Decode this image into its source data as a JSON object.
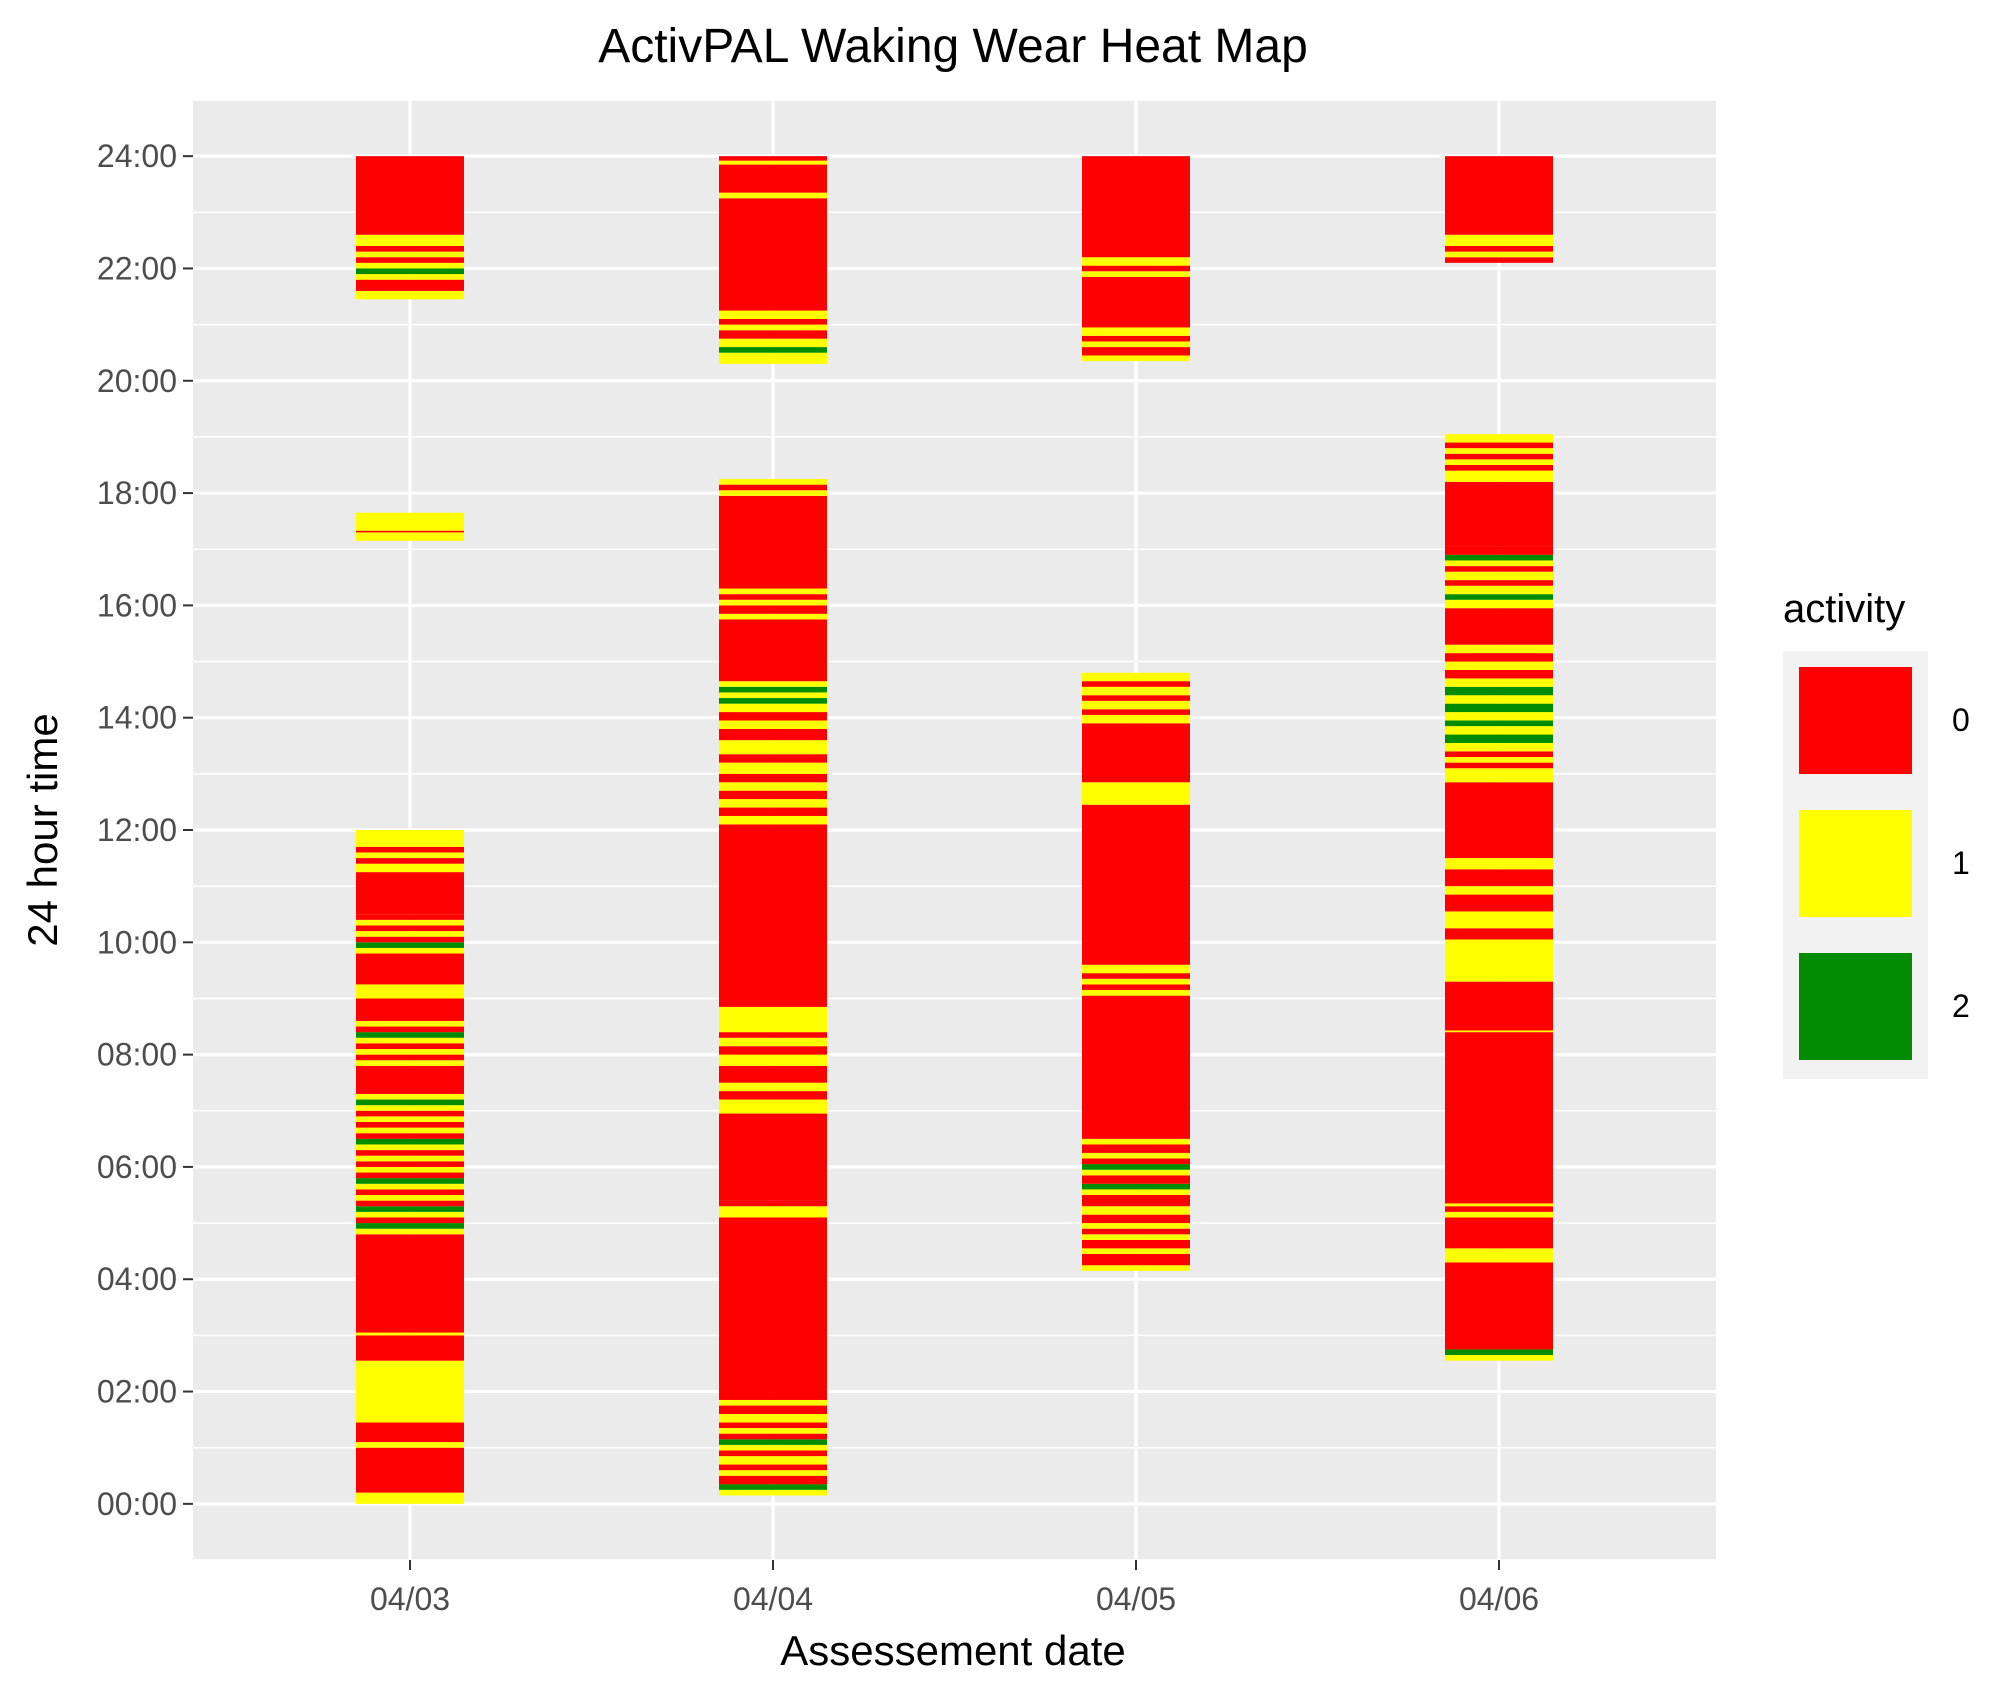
{
  "chart_data": {
    "type": "heatmap",
    "title": "ActivPAL Waking Wear Heat Map",
    "xlabel": "Assessement date",
    "ylabel": "24 hour time",
    "x_categories": [
      "04/03",
      "04/04",
      "04/05",
      "04/06"
    ],
    "y_ticks": [
      "00:00",
      "02:00",
      "04:00",
      "06:00",
      "08:00",
      "10:00",
      "12:00",
      "14:00",
      "16:00",
      "18:00",
      "20:00",
      "22:00",
      "24:00"
    ],
    "ylim_hours": [
      -1,
      25
    ],
    "grid": true,
    "legend": {
      "title": "activity",
      "position": "right",
      "entries": [
        {
          "label": "0",
          "color": "#ff0000"
        },
        {
          "label": "1",
          "color": "#ffff00"
        },
        {
          "label": "2",
          "color": "#008b00"
        }
      ]
    },
    "colors": {
      "0": "#ff0000",
      "1": "#ffff00",
      "2": "#008b00"
    },
    "panel_background": "#ebebeb",
    "series": [
      {
        "date": "04/03",
        "segments": [
          [
            0.0,
            0.2,
            1
          ],
          [
            0.2,
            1.0,
            0
          ],
          [
            1.0,
            1.1,
            1
          ],
          [
            1.1,
            1.45,
            0
          ],
          [
            1.45,
            2.55,
            1
          ],
          [
            2.55,
            3.0,
            0
          ],
          [
            3.0,
            3.05,
            1
          ],
          [
            3.05,
            4.8,
            0
          ],
          [
            4.8,
            4.9,
            1
          ],
          [
            4.9,
            5.0,
            2
          ],
          [
            5.0,
            5.1,
            0
          ],
          [
            5.1,
            5.2,
            1
          ],
          [
            5.2,
            5.3,
            2
          ],
          [
            5.3,
            5.4,
            0
          ],
          [
            5.4,
            5.5,
            1
          ],
          [
            5.5,
            5.6,
            0
          ],
          [
            5.6,
            5.7,
            1
          ],
          [
            5.7,
            5.8,
            2
          ],
          [
            5.8,
            5.9,
            0
          ],
          [
            5.9,
            6.0,
            1
          ],
          [
            6.0,
            6.1,
            0
          ],
          [
            6.1,
            6.2,
            1
          ],
          [
            6.2,
            6.3,
            0
          ],
          [
            6.3,
            6.4,
            1
          ],
          [
            6.4,
            6.5,
            2
          ],
          [
            6.5,
            6.6,
            0
          ],
          [
            6.6,
            6.7,
            1
          ],
          [
            6.7,
            6.8,
            0
          ],
          [
            6.8,
            6.9,
            1
          ],
          [
            6.9,
            7.0,
            0
          ],
          [
            7.0,
            7.1,
            1
          ],
          [
            7.1,
            7.2,
            2
          ],
          [
            7.2,
            7.3,
            1
          ],
          [
            7.3,
            7.8,
            0
          ],
          [
            7.8,
            7.9,
            1
          ],
          [
            7.9,
            8.0,
            0
          ],
          [
            8.0,
            8.1,
            1
          ],
          [
            8.1,
            8.2,
            0
          ],
          [
            8.2,
            8.3,
            1
          ],
          [
            8.3,
            8.4,
            2
          ],
          [
            8.4,
            8.5,
            0
          ],
          [
            8.5,
            8.6,
            1
          ],
          [
            8.6,
            9.0,
            0
          ],
          [
            9.0,
            9.25,
            1
          ],
          [
            9.25,
            9.8,
            0
          ],
          [
            9.8,
            9.9,
            1
          ],
          [
            9.9,
            10.0,
            2
          ],
          [
            10.0,
            10.1,
            0
          ],
          [
            10.1,
            10.2,
            1
          ],
          [
            10.2,
            10.3,
            0
          ],
          [
            10.3,
            10.4,
            1
          ],
          [
            10.4,
            10.5,
            0
          ],
          [
            10.5,
            11.25,
            0
          ],
          [
            11.25,
            11.4,
            1
          ],
          [
            11.4,
            11.5,
            0
          ],
          [
            11.5,
            11.6,
            1
          ],
          [
            11.6,
            11.7,
            0
          ],
          [
            11.7,
            11.8,
            1
          ],
          [
            11.8,
            12.0,
            1
          ],
          [
            17.15,
            17.3,
            1
          ],
          [
            17.3,
            17.33,
            0
          ],
          [
            17.33,
            17.65,
            1
          ],
          [
            21.45,
            21.6,
            1
          ],
          [
            21.6,
            21.8,
            0
          ],
          [
            21.8,
            21.9,
            1
          ],
          [
            21.9,
            22.0,
            2
          ],
          [
            22.0,
            22.1,
            1
          ],
          [
            22.1,
            22.2,
            0
          ],
          [
            22.2,
            22.3,
            1
          ],
          [
            22.3,
            22.4,
            0
          ],
          [
            22.4,
            22.6,
            1
          ],
          [
            22.6,
            24.0,
            0
          ]
        ]
      },
      {
        "date": "04/04",
        "segments": [
          [
            0.15,
            0.25,
            1
          ],
          [
            0.25,
            0.35,
            2
          ],
          [
            0.35,
            0.5,
            0
          ],
          [
            0.5,
            0.6,
            1
          ],
          [
            0.6,
            0.7,
            0
          ],
          [
            0.7,
            0.85,
            1
          ],
          [
            0.85,
            0.95,
            0
          ],
          [
            0.95,
            1.05,
            1
          ],
          [
            1.05,
            1.15,
            2
          ],
          [
            1.15,
            1.25,
            0
          ],
          [
            1.25,
            1.35,
            1
          ],
          [
            1.35,
            1.45,
            0
          ],
          [
            1.45,
            1.6,
            1
          ],
          [
            1.6,
            1.75,
            0
          ],
          [
            1.75,
            1.85,
            1
          ],
          [
            1.85,
            5.1,
            0
          ],
          [
            5.1,
            5.3,
            1
          ],
          [
            5.3,
            5.4,
            0
          ],
          [
            5.4,
            6.95,
            0
          ],
          [
            6.95,
            7.2,
            1
          ],
          [
            7.2,
            7.35,
            0
          ],
          [
            7.35,
            7.5,
            1
          ],
          [
            7.5,
            7.8,
            0
          ],
          [
            7.8,
            8.0,
            1
          ],
          [
            8.0,
            8.15,
            0
          ],
          [
            8.15,
            8.3,
            1
          ],
          [
            8.3,
            8.4,
            0
          ],
          [
            8.4,
            8.85,
            1
          ],
          [
            8.85,
            12.1,
            0
          ],
          [
            12.1,
            12.25,
            1
          ],
          [
            12.25,
            12.4,
            0
          ],
          [
            12.4,
            12.55,
            1
          ],
          [
            12.55,
            12.7,
            0
          ],
          [
            12.7,
            12.85,
            1
          ],
          [
            12.85,
            13.0,
            0
          ],
          [
            13.0,
            13.2,
            1
          ],
          [
            13.2,
            13.35,
            0
          ],
          [
            13.35,
            13.6,
            1
          ],
          [
            13.6,
            13.8,
            0
          ],
          [
            13.8,
            13.95,
            1
          ],
          [
            13.95,
            14.1,
            0
          ],
          [
            14.1,
            14.25,
            1
          ],
          [
            14.25,
            14.35,
            2
          ],
          [
            14.35,
            14.45,
            1
          ],
          [
            14.45,
            14.55,
            2
          ],
          [
            14.55,
            14.65,
            1
          ],
          [
            14.65,
            15.75,
            0
          ],
          [
            15.75,
            15.85,
            1
          ],
          [
            15.85,
            16.0,
            0
          ],
          [
            16.0,
            16.1,
            1
          ],
          [
            16.1,
            16.2,
            0
          ],
          [
            16.2,
            16.3,
            1
          ],
          [
            16.3,
            17.95,
            0
          ],
          [
            17.95,
            18.05,
            1
          ],
          [
            18.05,
            18.15,
            0
          ],
          [
            18.15,
            18.25,
            1
          ],
          [
            20.3,
            20.5,
            1
          ],
          [
            20.5,
            20.6,
            2
          ],
          [
            20.6,
            20.75,
            1
          ],
          [
            20.75,
            20.9,
            0
          ],
          [
            20.9,
            21.0,
            1
          ],
          [
            21.0,
            21.1,
            0
          ],
          [
            21.1,
            21.25,
            1
          ],
          [
            21.25,
            23.25,
            0
          ],
          [
            23.25,
            23.35,
            1
          ],
          [
            23.35,
            23.85,
            0
          ],
          [
            23.85,
            23.92,
            1
          ],
          [
            23.92,
            24.0,
            0
          ]
        ]
      },
      {
        "date": "04/05",
        "segments": [
          [
            4.15,
            4.25,
            1
          ],
          [
            4.25,
            4.45,
            0
          ],
          [
            4.45,
            4.55,
            1
          ],
          [
            4.55,
            4.7,
            0
          ],
          [
            4.7,
            4.8,
            1
          ],
          [
            4.8,
            4.9,
            0
          ],
          [
            4.9,
            5.0,
            1
          ],
          [
            5.0,
            5.15,
            0
          ],
          [
            5.15,
            5.3,
            1
          ],
          [
            5.3,
            5.5,
            0
          ],
          [
            5.5,
            5.6,
            1
          ],
          [
            5.6,
            5.7,
            2
          ],
          [
            5.7,
            5.85,
            0
          ],
          [
            5.85,
            5.95,
            1
          ],
          [
            5.95,
            6.05,
            2
          ],
          [
            6.05,
            6.15,
            0
          ],
          [
            6.15,
            6.25,
            1
          ],
          [
            6.25,
            6.4,
            0
          ],
          [
            6.4,
            6.5,
            1
          ],
          [
            6.5,
            9.05,
            0
          ],
          [
            9.05,
            9.15,
            1
          ],
          [
            9.15,
            9.25,
            0
          ],
          [
            9.25,
            9.35,
            1
          ],
          [
            9.35,
            9.45,
            0
          ],
          [
            9.45,
            9.6,
            1
          ],
          [
            9.6,
            12.45,
            0
          ],
          [
            12.45,
            12.85,
            1
          ],
          [
            12.85,
            13.9,
            0
          ],
          [
            13.9,
            14.05,
            1
          ],
          [
            14.05,
            14.15,
            0
          ],
          [
            14.15,
            14.3,
            1
          ],
          [
            14.3,
            14.4,
            0
          ],
          [
            14.4,
            14.55,
            1
          ],
          [
            14.55,
            14.65,
            0
          ],
          [
            14.65,
            14.8,
            1
          ],
          [
            20.35,
            20.45,
            1
          ],
          [
            20.45,
            20.6,
            0
          ],
          [
            20.6,
            20.7,
            1
          ],
          [
            20.7,
            20.8,
            0
          ],
          [
            20.8,
            20.95,
            1
          ],
          [
            20.95,
            21.85,
            0
          ],
          [
            21.85,
            21.95,
            1
          ],
          [
            21.95,
            22.05,
            0
          ],
          [
            22.05,
            22.2,
            1
          ],
          [
            22.2,
            24.0,
            0
          ]
        ]
      },
      {
        "date": "04/06",
        "segments": [
          [
            2.55,
            2.65,
            1
          ],
          [
            2.65,
            2.75,
            2
          ],
          [
            2.75,
            4.3,
            0
          ],
          [
            4.3,
            4.55,
            1
          ],
          [
            4.55,
            5.1,
            0
          ],
          [
            5.1,
            5.2,
            1
          ],
          [
            5.2,
            5.3,
            0
          ],
          [
            5.3,
            5.35,
            1
          ],
          [
            5.35,
            8.4,
            0
          ],
          [
            8.4,
            8.43,
            1
          ],
          [
            8.43,
            9.3,
            0
          ],
          [
            9.3,
            10.05,
            1
          ],
          [
            10.05,
            10.25,
            0
          ],
          [
            10.25,
            10.55,
            1
          ],
          [
            10.55,
            10.85,
            0
          ],
          [
            10.85,
            11.0,
            1
          ],
          [
            11.0,
            11.3,
            0
          ],
          [
            11.3,
            11.5,
            1
          ],
          [
            11.5,
            12.85,
            0
          ],
          [
            12.85,
            13.1,
            1
          ],
          [
            13.1,
            13.2,
            0
          ],
          [
            13.2,
            13.3,
            1
          ],
          [
            13.3,
            13.4,
            0
          ],
          [
            13.4,
            13.55,
            1
          ],
          [
            13.55,
            13.7,
            2
          ],
          [
            13.7,
            13.85,
            1
          ],
          [
            13.85,
            13.95,
            2
          ],
          [
            13.95,
            14.1,
            1
          ],
          [
            14.1,
            14.25,
            2
          ],
          [
            14.25,
            14.4,
            1
          ],
          [
            14.4,
            14.55,
            2
          ],
          [
            14.55,
            14.7,
            1
          ],
          [
            14.7,
            14.85,
            0
          ],
          [
            14.85,
            15.0,
            1
          ],
          [
            15.0,
            15.15,
            0
          ],
          [
            15.15,
            15.3,
            1
          ],
          [
            15.3,
            15.95,
            0
          ],
          [
            15.95,
            16.1,
            1
          ],
          [
            16.1,
            16.2,
            2
          ],
          [
            16.2,
            16.35,
            1
          ],
          [
            16.35,
            16.45,
            0
          ],
          [
            16.45,
            16.6,
            1
          ],
          [
            16.6,
            16.7,
            0
          ],
          [
            16.7,
            16.8,
            1
          ],
          [
            16.8,
            16.9,
            2
          ],
          [
            16.9,
            17.05,
            0
          ],
          [
            17.05,
            18.2,
            0
          ],
          [
            18.2,
            18.4,
            1
          ],
          [
            18.4,
            18.5,
            0
          ],
          [
            18.5,
            18.6,
            1
          ],
          [
            18.6,
            18.7,
            0
          ],
          [
            18.7,
            18.8,
            1
          ],
          [
            18.8,
            18.9,
            0
          ],
          [
            18.9,
            19.05,
            1
          ],
          [
            22.1,
            22.2,
            0
          ],
          [
            22.2,
            22.3,
            1
          ],
          [
            22.3,
            22.4,
            0
          ],
          [
            22.4,
            22.6,
            1
          ],
          [
            22.6,
            24.0,
            0
          ]
        ]
      }
    ]
  }
}
